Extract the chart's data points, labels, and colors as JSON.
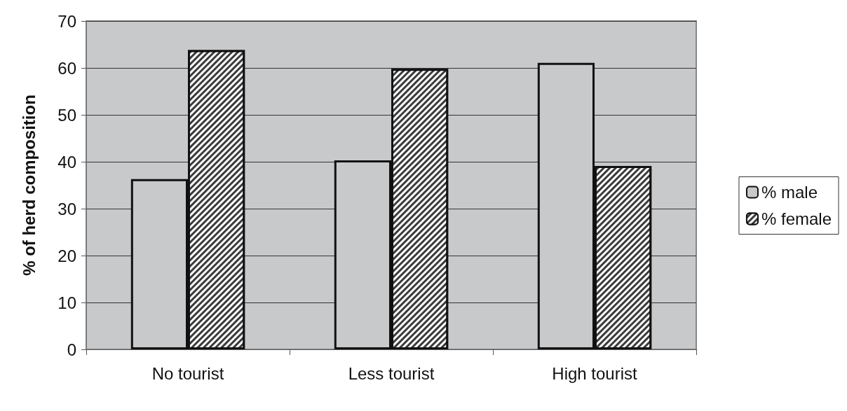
{
  "chart_data": {
    "type": "bar",
    "ylabel": "% of herd composition",
    "categories": [
      "No tourist",
      "Less tourist",
      "High tourist"
    ],
    "series": [
      {
        "name": "% male",
        "color": "#c8c9cb",
        "values": [
          36.3,
          40.3,
          61.1
        ]
      },
      {
        "name": "% female",
        "color": "#3a3a3a",
        "values": [
          63.8,
          59.8,
          39.1
        ]
      }
    ],
    "ylim": [
      0,
      70
    ],
    "yticks": [
      0,
      10,
      20,
      30,
      40,
      50,
      60,
      70
    ],
    "grid": "y",
    "legend": "right"
  }
}
